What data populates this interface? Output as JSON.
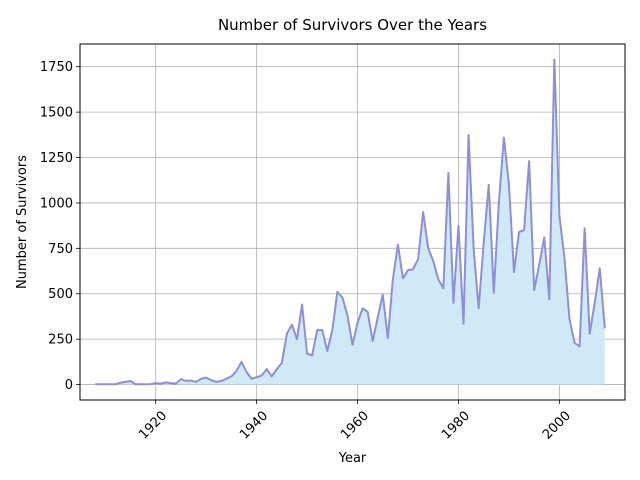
{
  "chart_data": {
    "type": "area",
    "title": "Number of Survivors Over the Years",
    "xlabel": "Year",
    "ylabel": "Number of Survivors",
    "xlim": [
      1905,
      2013
    ],
    "ylim": [
      -85,
      1875
    ],
    "xticks": [
      1920,
      1940,
      1960,
      1980,
      2000
    ],
    "yticks": [
      0,
      250,
      500,
      750,
      1000,
      1250,
      1500,
      1750
    ],
    "grid": true,
    "line_color": "#8f8fd8",
    "fill_color": "#cfe9f6",
    "series": [
      {
        "x": [
          1908,
          1909,
          1910,
          1911,
          1912,
          1913,
          1914,
          1915,
          1916,
          1917,
          1918,
          1919,
          1920,
          1921,
          1922,
          1923,
          1924,
          1925,
          1926,
          1927,
          1928,
          1929,
          1930,
          1931,
          1932,
          1933,
          1934,
          1935,
          1936,
          1937,
          1938,
          1939,
          1940,
          1941,
          1942,
          1943,
          1944,
          1945,
          1946,
          1947,
          1948,
          1949,
          1950,
          1951,
          1952,
          1953,
          1954,
          1955,
          1956,
          1957,
          1958,
          1959,
          1960,
          1961,
          1962,
          1963,
          1964,
          1965,
          1966,
          1967,
          1968,
          1969,
          1970,
          1971,
          1972,
          1973,
          1974,
          1975,
          1976,
          1977,
          1978,
          1979,
          1980,
          1981,
          1982,
          1983,
          1984,
          1985,
          1986,
          1987,
          1988,
          1989,
          1990,
          1991,
          1992,
          1993,
          1994,
          1995,
          1996,
          1997,
          1998,
          1999,
          2000,
          2001,
          2002,
          2003,
          2004,
          2005,
          2006,
          2007,
          2008,
          2009
        ],
        "values": [
          2,
          2,
          2,
          2,
          2,
          10,
          15,
          20,
          2,
          2,
          2,
          2,
          8,
          5,
          12,
          8,
          5,
          30,
          20,
          22,
          15,
          32,
          38,
          25,
          15,
          20,
          32,
          45,
          75,
          125,
          70,
          32,
          40,
          50,
          85,
          45,
          85,
          120,
          280,
          330,
          250,
          440,
          170,
          160,
          300,
          300,
          185,
          300,
          510,
          480,
          380,
          220,
          340,
          420,
          400,
          240,
          370,
          495,
          255,
          580,
          770,
          585,
          630,
          635,
          690,
          950,
          750,
          680,
          580,
          530,
          1165,
          450,
          875,
          335,
          1375,
          750,
          420,
          780,
          1100,
          505,
          1000,
          1360,
          1100,
          620,
          840,
          850,
          1230,
          520,
          660,
          810,
          470,
          1790,
          930,
          700,
          360,
          230,
          210,
          860,
          280,
          450,
          640,
          310
        ]
      }
    ]
  }
}
